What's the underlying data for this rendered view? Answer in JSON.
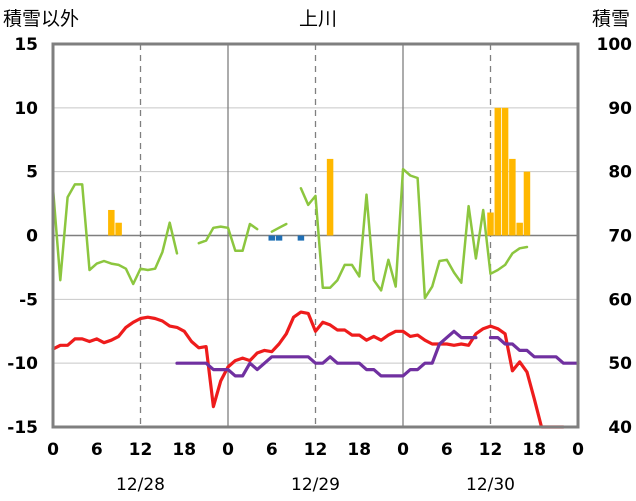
{
  "chart_data": {
    "type": "bar+line",
    "title": "上川",
    "left_axis_label": "積雪以外",
    "right_axis_label": "積雪",
    "y_left": {
      "min": -15,
      "max": 15,
      "ticks": [
        15,
        10,
        5,
        0,
        -5,
        -10,
        -15
      ]
    },
    "y_right": {
      "min": 40,
      "max": 100,
      "ticks": [
        100,
        90,
        80,
        70,
        60,
        50,
        40
      ]
    },
    "x": {
      "min": 0,
      "max": 72,
      "tick_labels": [
        "0",
        "6",
        "12",
        "18",
        "0",
        "6",
        "12",
        "18",
        "0",
        "6",
        "12",
        "18",
        "0"
      ]
    },
    "date_labels": [
      {
        "x": 12,
        "text": "12/28"
      },
      {
        "x": 36,
        "text": "12/29"
      },
      {
        "x": 60,
        "text": "12/30"
      }
    ],
    "day_boundaries": [
      24,
      48
    ],
    "dashed_gridlines_x": [
      12,
      36,
      60
    ],
    "series": [
      {
        "kind": "bar",
        "color": "#FFB800",
        "axis": "left",
        "points": [
          [
            8,
            2
          ],
          [
            9,
            1
          ],
          [
            38,
            6
          ],
          [
            60,
            1.8
          ],
          [
            61,
            10
          ],
          [
            62,
            10
          ],
          [
            63,
            6
          ],
          [
            64,
            1
          ],
          [
            65,
            5
          ]
        ]
      },
      {
        "kind": "bar",
        "color": "#1F6FB5",
        "axis": "left",
        "points": [
          [
            30,
            -0.4
          ],
          [
            31,
            -0.4
          ],
          [
            34,
            -0.4
          ]
        ]
      },
      {
        "kind": "line",
        "color": "#8CC63F",
        "axis": "left",
        "points": [
          [
            0,
            3.7
          ],
          [
            1,
            -3.5
          ],
          [
            2,
            3
          ],
          [
            3,
            4
          ],
          [
            4,
            4
          ],
          [
            5,
            -2.7
          ],
          [
            6,
            -2.2
          ],
          [
            7,
            -2
          ],
          [
            8,
            -2.2
          ],
          [
            9,
            -2.3
          ],
          [
            10,
            -2.6
          ],
          [
            11,
            -3.8
          ],
          [
            12,
            -2.6
          ],
          [
            13,
            -2.7
          ],
          [
            14,
            -2.6
          ],
          [
            15,
            -1.3
          ],
          [
            16,
            1
          ],
          [
            17,
            -1.4
          ],
          null,
          [
            20,
            -0.6
          ],
          [
            21,
            -0.4
          ],
          [
            22,
            0.6
          ],
          [
            23,
            0.7
          ],
          [
            24,
            0.6
          ],
          [
            25,
            -1.2
          ],
          [
            26,
            -1.2
          ],
          [
            27,
            0.9
          ],
          [
            28,
            0.5
          ],
          null,
          [
            30,
            0.3
          ],
          [
            31,
            0.6
          ],
          [
            32,
            0.9
          ],
          null,
          [
            34,
            3.7
          ],
          [
            35,
            2.4
          ],
          [
            36,
            3.1
          ],
          [
            37,
            -4.1
          ],
          [
            38,
            -4.1
          ],
          [
            39,
            -3.5
          ],
          [
            40,
            -2.3
          ],
          [
            41,
            -2.3
          ],
          [
            42,
            -3.2
          ],
          [
            43,
            3.2
          ],
          [
            44,
            -3.5
          ],
          [
            45,
            -4.3
          ],
          [
            46,
            -1.9
          ],
          [
            47,
            -4
          ],
          [
            48,
            5.2
          ],
          [
            49,
            4.7
          ],
          [
            50,
            4.5
          ],
          [
            51,
            -4.9
          ],
          [
            52,
            -4
          ],
          [
            53,
            -2
          ],
          [
            54,
            -1.9
          ],
          [
            55,
            -2.9
          ],
          [
            56,
            -3.7
          ],
          [
            57,
            2.3
          ],
          [
            58,
            -1.8
          ],
          [
            59,
            2
          ],
          [
            60,
            -3
          ],
          [
            61,
            -2.7
          ],
          [
            62,
            -2.3
          ],
          [
            63,
            -1.4
          ],
          [
            64,
            -1
          ],
          [
            65,
            -0.9
          ]
        ]
      },
      {
        "kind": "line",
        "color": "#EE1C1C",
        "axis": "left",
        "points": [
          [
            0,
            -8.9
          ],
          [
            1,
            -8.6
          ],
          [
            2,
            -8.6
          ],
          [
            3,
            -8.1
          ],
          [
            4,
            -8.1
          ],
          [
            5,
            -8.3
          ],
          [
            6,
            -8.1
          ],
          [
            7,
            -8.4
          ],
          [
            8,
            -8.2
          ],
          [
            9,
            -7.9
          ],
          [
            10,
            -7.2
          ],
          [
            11,
            -6.8
          ],
          [
            12,
            -6.5
          ],
          [
            13,
            -6.4
          ],
          [
            14,
            -6.5
          ],
          [
            15,
            -6.7
          ],
          [
            16,
            -7.1
          ],
          [
            17,
            -7.2
          ],
          [
            18,
            -7.5
          ],
          [
            19,
            -8.3
          ],
          [
            20,
            -8.8
          ],
          [
            21,
            -8.7
          ],
          [
            22,
            -13.4
          ],
          [
            23,
            -11.4
          ],
          [
            24,
            -10.3
          ],
          [
            25,
            -9.8
          ],
          [
            26,
            -9.6
          ],
          [
            27,
            -9.8
          ],
          [
            28,
            -9.2
          ],
          [
            29,
            -9
          ],
          [
            30,
            -9.1
          ],
          [
            31,
            -8.5
          ],
          [
            32,
            -7.7
          ],
          [
            33,
            -6.4
          ],
          [
            34,
            -6
          ],
          [
            35,
            -6.1
          ],
          [
            36,
            -7.5
          ],
          [
            37,
            -6.8
          ],
          [
            38,
            -7
          ],
          [
            39,
            -7.4
          ],
          [
            40,
            -7.4
          ],
          [
            41,
            -7.8
          ],
          [
            42,
            -7.8
          ],
          [
            43,
            -8.2
          ],
          [
            44,
            -7.9
          ],
          [
            45,
            -8.2
          ],
          [
            46,
            -7.8
          ],
          [
            47,
            -7.5
          ],
          [
            48,
            -7.5
          ],
          [
            49,
            -7.9
          ],
          [
            50,
            -7.8
          ],
          [
            51,
            -8.2
          ],
          [
            52,
            -8.5
          ],
          [
            53,
            -8.5
          ],
          [
            54,
            -8.5
          ],
          [
            55,
            -8.6
          ],
          [
            56,
            -8.5
          ],
          [
            57,
            -8.6
          ],
          [
            58,
            -7.7
          ],
          [
            59,
            -7.3
          ],
          [
            60,
            -7.1
          ],
          [
            61,
            -7.3
          ],
          [
            62,
            -7.7
          ],
          [
            63,
            -10.6
          ],
          [
            64,
            -9.9
          ],
          [
            65,
            -10.7
          ],
          [
            66,
            -12.8
          ],
          [
            67,
            -15
          ],
          [
            68,
            -15
          ],
          [
            69,
            -15
          ],
          [
            70,
            -15
          ]
        ]
      },
      {
        "kind": "line",
        "color": "#7030A0",
        "axis": "right",
        "points": [
          [
            17,
            50
          ],
          [
            18,
            50
          ],
          [
            19,
            50
          ],
          [
            20,
            50
          ],
          [
            21,
            50
          ],
          [
            22,
            49
          ],
          [
            23,
            49
          ],
          [
            24,
            49
          ],
          [
            25,
            48
          ],
          [
            26,
            48
          ],
          [
            27,
            50
          ],
          [
            28,
            49
          ],
          [
            29,
            50
          ],
          [
            30,
            51
          ],
          [
            31,
            51
          ],
          [
            32,
            51
          ],
          [
            33,
            51
          ],
          [
            34,
            51
          ],
          [
            35,
            51
          ],
          [
            36,
            50
          ],
          [
            37,
            50
          ],
          [
            38,
            51
          ],
          [
            39,
            50
          ],
          [
            40,
            50
          ],
          [
            41,
            50
          ],
          [
            42,
            50
          ],
          [
            43,
            49
          ],
          [
            44,
            49
          ],
          [
            45,
            48
          ],
          [
            46,
            48
          ],
          [
            47,
            48
          ],
          [
            48,
            48
          ],
          [
            49,
            49
          ],
          [
            50,
            49
          ],
          [
            51,
            50
          ],
          [
            52,
            50
          ],
          [
            53,
            53
          ],
          [
            54,
            54
          ],
          [
            55,
            55
          ],
          [
            56,
            54
          ],
          [
            57,
            54
          ],
          [
            58,
            54
          ],
          null,
          [
            60,
            54
          ],
          [
            61,
            54
          ],
          [
            62,
            53
          ],
          [
            63,
            53
          ],
          [
            64,
            52
          ],
          [
            65,
            52
          ],
          [
            66,
            51
          ],
          [
            67,
            51
          ],
          [
            68,
            51
          ],
          [
            69,
            51
          ],
          [
            70,
            50
          ],
          [
            71,
            50
          ],
          [
            72,
            50
          ]
        ]
      }
    ]
  }
}
